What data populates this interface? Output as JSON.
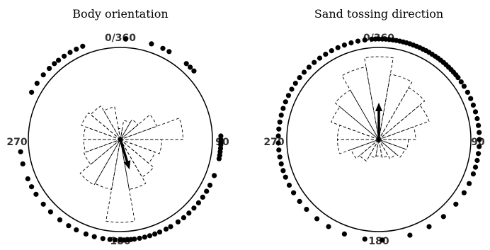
{
  "chart_data": [
    {
      "type": "rose",
      "title": "Body orientation",
      "direction_labels": {
        "top": "0/360",
        "right": "90",
        "bottom": "180",
        "left": "270"
      },
      "bin_width_deg": 20,
      "rose_bins": [
        {
          "center_deg": 0,
          "relative_frequency": 0.12
        },
        {
          "center_deg": 20,
          "relative_frequency": 0.21
        },
        {
          "center_deg": 40,
          "relative_frequency": 0.25
        },
        {
          "center_deg": 60,
          "relative_frequency": 0.42
        },
        {
          "center_deg": 80,
          "relative_frequency": 0.68
        },
        {
          "center_deg": 100,
          "relative_frequency": 0.45
        },
        {
          "center_deg": 120,
          "relative_frequency": 0.4
        },
        {
          "center_deg": 140,
          "relative_frequency": 0.47
        },
        {
          "center_deg": 160,
          "relative_frequency": 0.55
        },
        {
          "center_deg": 180,
          "relative_frequency": 0.9
        },
        {
          "center_deg": 200,
          "relative_frequency": 0.55
        },
        {
          "center_deg": 220,
          "relative_frequency": 0.57
        },
        {
          "center_deg": 240,
          "relative_frequency": 0.42
        },
        {
          "center_deg": 260,
          "relative_frequency": 0.4
        },
        {
          "center_deg": 280,
          "relative_frequency": 0.4
        },
        {
          "center_deg": 300,
          "relative_frequency": 0.45
        },
        {
          "center_deg": 320,
          "relative_frequency": 0.42
        },
        {
          "center_deg": 340,
          "relative_frequency": 0.36
        }
      ],
      "mean_vector": {
        "angle_deg": 163,
        "length": 0.34
      },
      "observations_deg": [
        3,
        18,
        25,
        29,
        41,
        44,
        47,
        88,
        90,
        91,
        92,
        93,
        95,
        97,
        99,
        101,
        111,
        117,
        121,
        125,
        129,
        133,
        137,
        141,
        145,
        150,
        153,
        157,
        160,
        163,
        166,
        169,
        172,
        174,
        176,
        178,
        180,
        183,
        186,
        190,
        195,
        200,
        206,
        211,
        217,
        224,
        230,
        237,
        242,
        247,
        256,
        263,
        298,
        304,
        310,
        315,
        319,
        322,
        326,
        330,
        334,
        338
      ]
    },
    {
      "type": "rose",
      "title": "Sand tossing direction",
      "direction_labels": {
        "top": "0/360",
        "right": "90",
        "bottom": "180",
        "left": "270"
      },
      "bin_width_deg": 20,
      "rose_bins": [
        {
          "center_deg": 0,
          "relative_frequency": 0.9
        },
        {
          "center_deg": 20,
          "relative_frequency": 0.72
        },
        {
          "center_deg": 40,
          "relative_frequency": 0.65
        },
        {
          "center_deg": 60,
          "relative_frequency": 0.58
        },
        {
          "center_deg": 80,
          "relative_frequency": 0.4
        },
        {
          "center_deg": 100,
          "relative_frequency": 0.32
        },
        {
          "center_deg": 120,
          "relative_frequency": 0.3
        },
        {
          "center_deg": 140,
          "relative_frequency": 0.24
        },
        {
          "center_deg": 160,
          "relative_frequency": 0.2
        },
        {
          "center_deg": 180,
          "relative_frequency": 0.18
        },
        {
          "center_deg": 200,
          "relative_frequency": 0.2
        },
        {
          "center_deg": 220,
          "relative_frequency": 0.27
        },
        {
          "center_deg": 240,
          "relative_frequency": 0.32
        },
        {
          "center_deg": 260,
          "relative_frequency": 0.45
        },
        {
          "center_deg": 280,
          "relative_frequency": 0.45
        },
        {
          "center_deg": 300,
          "relative_frequency": 0.55
        },
        {
          "center_deg": 320,
          "relative_frequency": 0.62
        },
        {
          "center_deg": 340,
          "relative_frequency": 0.8
        }
      ],
      "mean_vector": {
        "angle_deg": 0,
        "length": 0.4
      },
      "observations_deg": [
        0,
        2,
        4,
        6,
        8,
        10,
        12,
        14,
        16,
        18,
        20,
        22,
        24,
        26,
        28,
        30,
        32,
        34,
        36,
        38,
        40,
        42,
        44,
        46,
        48,
        50,
        52,
        55,
        58,
        62,
        66,
        70,
        74,
        78,
        82,
        86,
        90,
        94,
        98,
        102,
        106,
        110,
        116,
        122,
        130,
        140,
        150,
        162,
        178,
        188,
        200,
        210,
        218,
        226,
        232,
        238,
        243,
        248,
        252,
        256,
        260,
        264,
        268,
        272,
        276,
        280,
        284,
        288,
        292,
        296,
        300,
        304,
        308,
        312,
        316,
        320,
        324,
        328,
        332,
        336,
        340,
        344,
        348,
        352,
        356,
        358
      ]
    }
  ]
}
